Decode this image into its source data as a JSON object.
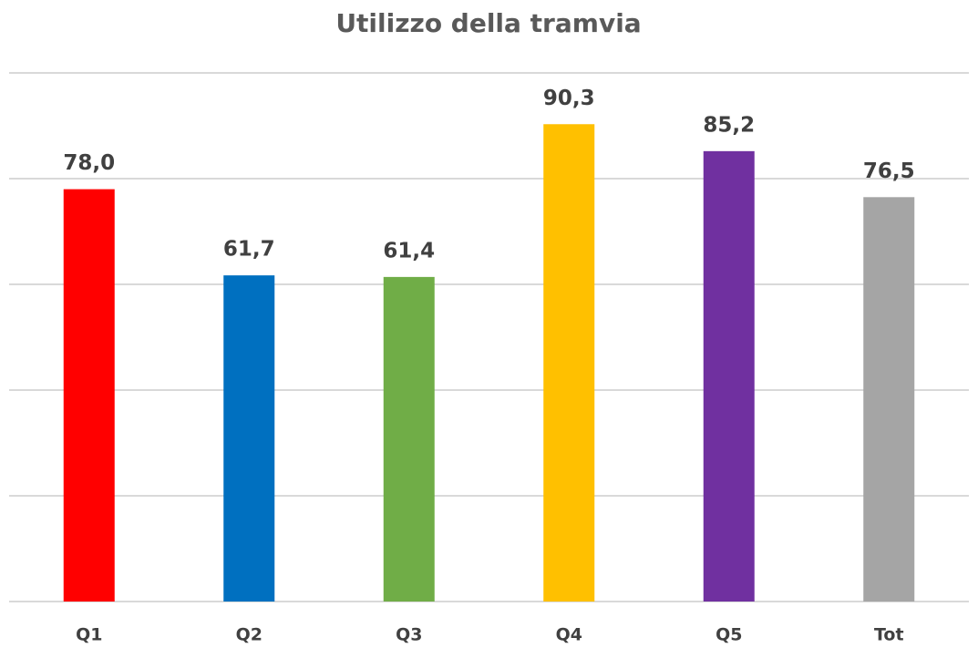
{
  "chart_data": {
    "type": "bar",
    "title": "Utilizzo della tramvia",
    "categories": [
      "Q1",
      "Q2",
      "Q3",
      "Q4",
      "Q5",
      "Tot"
    ],
    "values": [
      78.0,
      61.7,
      61.4,
      90.3,
      85.2,
      76.5
    ],
    "value_labels": [
      "78,0",
      "61,7",
      "61,4",
      "90,3",
      "85,2",
      "76,5"
    ],
    "colors": [
      "#ff0000",
      "#0070c0",
      "#70ad47",
      "#ffc000",
      "#7030a0",
      "#a5a5a5"
    ],
    "ylim": [
      0,
      100
    ],
    "yticks": [
      0,
      20,
      40,
      60,
      80,
      100
    ],
    "grid": true
  }
}
